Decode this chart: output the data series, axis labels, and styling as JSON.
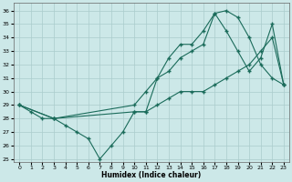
{
  "xlabel": "Humidex (Indice chaleur)",
  "bg_color": "#cce8e8",
  "grid_color": "#aacccc",
  "line_color": "#1a6b5a",
  "xlim": [
    -0.5,
    23.5
  ],
  "ylim": [
    24.8,
    36.6
  ],
  "yticks": [
    25,
    26,
    27,
    28,
    29,
    30,
    31,
    32,
    33,
    34,
    35,
    36
  ],
  "xticks": [
    0,
    1,
    2,
    3,
    4,
    5,
    6,
    7,
    8,
    9,
    10,
    11,
    12,
    13,
    14,
    15,
    16,
    17,
    18,
    19,
    20,
    21,
    22,
    23
  ],
  "line1_x": [
    0,
    1,
    2,
    3,
    4,
    5,
    6,
    7,
    8,
    9,
    10,
    11,
    12,
    13,
    14,
    15,
    16,
    17,
    18,
    19,
    20,
    21,
    22,
    23
  ],
  "line1_y": [
    29.0,
    28.5,
    28.0,
    28.0,
    27.5,
    27.0,
    26.5,
    25.0,
    26.0,
    27.0,
    28.5,
    28.5,
    31.0,
    32.5,
    33.5,
    33.5,
    34.5,
    35.8,
    36.0,
    35.5,
    34.0,
    32.0,
    31.0,
    30.5
  ],
  "line2_x": [
    0,
    3,
    10,
    11,
    12,
    13,
    14,
    15,
    16,
    17,
    18,
    19,
    20,
    21,
    22,
    23
  ],
  "line2_y": [
    29.0,
    28.0,
    29.0,
    30.0,
    31.0,
    31.5,
    32.5,
    33.0,
    33.5,
    35.8,
    34.5,
    33.0,
    31.5,
    32.5,
    35.0,
    30.5
  ],
  "line3_x": [
    0,
    3,
    10,
    11,
    12,
    13,
    14,
    15,
    16,
    17,
    18,
    19,
    20,
    21,
    22,
    23
  ],
  "line3_y": [
    29.0,
    28.0,
    28.5,
    28.5,
    29.0,
    29.5,
    30.0,
    30.0,
    30.0,
    30.5,
    31.0,
    31.5,
    32.0,
    33.0,
    34.0,
    30.5
  ]
}
